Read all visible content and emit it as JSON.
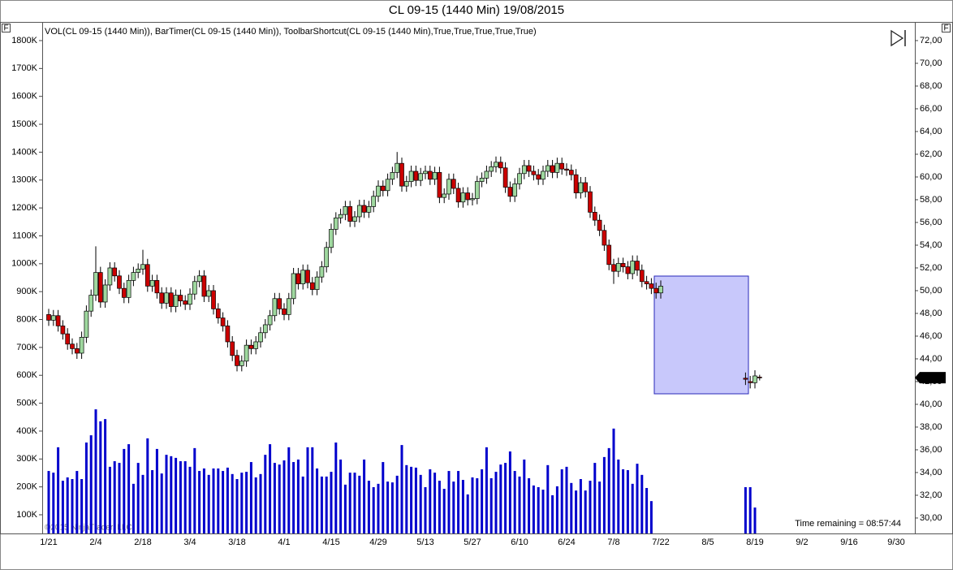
{
  "chart_data": {
    "type": "candlestick",
    "title": "CL 09-15 (1440 Min)  19/08/2015",
    "indicator_label": "VOL(CL 09-15 (1440 Min)), BarTimer(CL 09-15 (1440 Min)), ToolbarShortcut(CL 09-15 (1440 Min),True,True,True,True,True)",
    "annotation": "Time remaining = 08:57:44",
    "copyright": "©2015 NinjaTrader, LLC",
    "panel_buttons": {
      "left": "F",
      "right": "F"
    },
    "last_price": {
      "value": 42.35,
      "label": "42,35"
    },
    "up_color": "#9fd89f",
    "down_color": "#cc0000",
    "categories": [
      "1/21",
      null,
      null,
      null,
      null,
      null,
      null,
      null,
      null,
      null,
      "2/4",
      null,
      null,
      null,
      null,
      null,
      null,
      null,
      null,
      null,
      "2/18",
      null,
      null,
      null,
      null,
      null,
      null,
      null,
      null,
      null,
      "3/4",
      null,
      null,
      null,
      null,
      null,
      null,
      null,
      null,
      null,
      "3/18",
      null,
      null,
      null,
      null,
      null,
      null,
      null,
      null,
      null,
      "4/1",
      null,
      null,
      null,
      null,
      null,
      null,
      null,
      null,
      null,
      "4/15",
      null,
      null,
      null,
      null,
      null,
      null,
      null,
      null,
      null,
      "4/29",
      null,
      null,
      null,
      null,
      null,
      null,
      null,
      null,
      null,
      "5/13",
      null,
      null,
      null,
      null,
      null,
      null,
      null,
      null,
      null,
      "5/27",
      null,
      null,
      null,
      null,
      null,
      null,
      null,
      null,
      null,
      "6/10",
      null,
      null,
      null,
      null,
      null,
      null,
      null,
      null,
      null,
      "6/24",
      null,
      null,
      null,
      null,
      null,
      null,
      null,
      null,
      null,
      "7/8",
      null,
      null,
      null,
      null,
      null,
      null,
      null,
      null,
      null,
      "7/22",
      null,
      null,
      null,
      null,
      null,
      null,
      null,
      null,
      null,
      "8/5",
      null,
      null,
      null,
      null,
      null,
      null,
      null,
      null,
      null,
      "8/19",
      null,
      null,
      null,
      null,
      null,
      null,
      null,
      null,
      null,
      "9/2",
      null,
      null,
      null,
      null,
      null,
      null,
      null,
      null,
      null,
      "9/16",
      null,
      null,
      null,
      null,
      null,
      null,
      null,
      null,
      null,
      "9/30",
      null
    ],
    "ohlc": {
      "open": [
        47.9,
        47.4,
        47.8,
        46.9,
        46.2,
        45.3,
        44.9,
        44.5,
        45.9,
        48.2,
        49.6,
        51.6,
        49.0,
        50.5,
        52.0,
        51.3,
        50.2,
        49.4,
        50.9,
        51.6,
        51.9,
        52.3,
        50.4,
        50.9,
        49.8,
        48.9,
        49.8,
        48.6,
        49.6,
        49.1,
        48.8,
        49.7,
        50.8,
        51.3,
        49.5,
        50.0,
        48.4,
        47.6,
        46.9,
        45.5,
        44.3,
        43.4,
        43.8,
        45.2,
        44.9,
        45.5,
        46.3,
        47.0,
        47.8,
        49.3,
        48.4,
        47.9,
        49.3,
        51.5,
        50.6,
        51.8,
        50.7,
        50.1,
        51.2,
        52.1,
        53.8,
        55.4,
        56.4,
        56.7,
        57.4,
        56.1,
        56.5,
        57.5,
        56.9,
        57.4,
        58.3,
        59.2,
        58.8,
        59.8,
        60.4,
        61.2,
        59.2,
        59.6,
        60.5,
        59.7,
        60.3,
        60.5,
        59.8,
        60.4,
        58.2,
        58.5,
        59.8,
        59.0,
        57.8,
        58.6,
        58.0,
        58.1,
        59.6,
        59.9,
        60.5,
        60.9,
        61.3,
        60.8,
        59.1,
        58.3,
        59.4,
        60.3,
        61.0,
        60.5,
        60.2,
        59.8,
        60.5,
        61.0,
        60.4,
        61.2,
        60.7,
        60.6,
        60.2,
        58.6,
        59.5,
        58.7,
        56.9,
        56.2,
        55.3,
        54.0,
        52.3,
        51.7,
        52.4,
        52.1,
        51.5,
        52.6,
        51.8,
        50.8,
        50.6,
        50.2,
        49.8,
        null,
        null,
        null,
        null,
        null,
        null,
        null,
        null,
        null,
        null,
        null,
        null,
        null,
        null,
        null,
        null,
        null,
        42.3,
        42.0,
        41.9,
        42.4,
        null,
        null,
        null,
        null,
        null,
        null,
        null,
        null,
        null,
        null,
        null,
        null,
        null,
        null,
        null,
        null,
        null,
        null,
        null,
        null,
        null,
        null,
        null,
        null,
        null,
        null,
        null,
        null,
        null,
        null
      ],
      "high": [
        48.4,
        48.3,
        48.3,
        47.4,
        46.7,
        45.8,
        45.4,
        46.4,
        48.7,
        50.1,
        53.9,
        52.1,
        51.0,
        52.5,
        52.5,
        51.8,
        50.7,
        51.4,
        52.1,
        52.4,
        53.6,
        52.8,
        51.4,
        51.4,
        50.3,
        50.3,
        50.3,
        50.1,
        50.1,
        49.6,
        50.2,
        51.3,
        51.8,
        51.8,
        50.5,
        50.5,
        48.9,
        48.1,
        47.4,
        46.0,
        44.8,
        44.3,
        45.7,
        45.7,
        46.0,
        46.8,
        47.5,
        48.3,
        49.8,
        49.8,
        48.9,
        49.8,
        52.0,
        52.0,
        52.3,
        52.3,
        51.2,
        51.7,
        52.6,
        54.3,
        55.9,
        56.9,
        57.2,
        57.9,
        57.9,
        57.0,
        58.0,
        58.0,
        57.9,
        58.8,
        59.7,
        59.7,
        60.3,
        60.9,
        62.2,
        61.7,
        60.1,
        61.0,
        61.0,
        60.8,
        61.0,
        61.0,
        60.9,
        60.9,
        59.0,
        60.3,
        60.3,
        59.5,
        59.1,
        59.1,
        58.6,
        60.1,
        60.4,
        61.0,
        61.4,
        61.8,
        61.8,
        61.3,
        59.6,
        59.9,
        60.8,
        61.5,
        61.5,
        61.0,
        60.7,
        61.0,
        61.5,
        61.5,
        61.7,
        61.7,
        61.2,
        61.1,
        60.7,
        60.0,
        60.0,
        59.2,
        57.4,
        56.7,
        55.8,
        54.5,
        52.8,
        52.9,
        52.9,
        52.6,
        53.1,
        53.1,
        52.3,
        51.3,
        51.1,
        50.7,
        50.9,
        null,
        null,
        null,
        null,
        null,
        null,
        null,
        null,
        null,
        null,
        null,
        null,
        null,
        null,
        null,
        null,
        null,
        42.8,
        42.5,
        43.0,
        42.6,
        null,
        null,
        null,
        null,
        null,
        null,
        null,
        null,
        null,
        null,
        null,
        null,
        null,
        null,
        null,
        null,
        null,
        null,
        null,
        null,
        null,
        null,
        null,
        null,
        null,
        null,
        null,
        null,
        null,
        null
      ],
      "low": [
        46.9,
        46.9,
        46.4,
        45.7,
        44.8,
        44.4,
        44.0,
        44.0,
        45.4,
        47.7,
        49.1,
        48.5,
        48.5,
        50.0,
        50.8,
        49.7,
        48.9,
        48.9,
        50.4,
        51.1,
        51.4,
        49.9,
        49.9,
        49.3,
        48.4,
        48.4,
        48.1,
        48.1,
        48.6,
        48.3,
        48.3,
        49.2,
        50.3,
        49.0,
        49.0,
        47.9,
        47.1,
        46.4,
        45.0,
        43.8,
        42.9,
        42.9,
        43.3,
        44.4,
        44.4,
        45.0,
        45.8,
        46.5,
        47.3,
        47.9,
        47.4,
        47.4,
        48.8,
        50.1,
        50.1,
        50.2,
        49.6,
        49.6,
        50.7,
        51.6,
        53.3,
        54.9,
        55.9,
        56.2,
        55.6,
        55.6,
        56.0,
        56.4,
        56.4,
        56.9,
        57.8,
        58.3,
        58.3,
        59.3,
        59.9,
        58.7,
        58.7,
        59.1,
        59.2,
        59.2,
        59.8,
        59.3,
        59.3,
        57.7,
        57.7,
        58.0,
        58.5,
        57.3,
        57.3,
        57.5,
        57.5,
        57.6,
        59.1,
        59.4,
        60.0,
        60.4,
        60.3,
        58.6,
        57.8,
        57.8,
        58.9,
        59.8,
        60.0,
        59.7,
        59.3,
        59.3,
        60.0,
        59.9,
        59.9,
        60.2,
        60.1,
        59.7,
        58.1,
        58.1,
        58.2,
        56.4,
        55.7,
        54.8,
        53.5,
        51.8,
        50.6,
        51.2,
        51.6,
        51.0,
        51.0,
        51.3,
        50.3,
        50.1,
        49.7,
        49.3,
        49.3,
        null,
        null,
        null,
        null,
        null,
        null,
        null,
        null,
        null,
        null,
        null,
        null,
        null,
        null,
        null,
        null,
        null,
        41.7,
        41.4,
        41.4,
        42.1,
        null,
        null,
        null,
        null,
        null,
        null,
        null,
        null,
        null,
        null,
        null,
        null,
        null,
        null,
        null,
        null,
        null,
        null,
        null,
        null,
        null,
        null,
        null,
        null,
        null,
        null,
        null,
        null,
        null,
        null
      ],
      "close": [
        47.4,
        47.8,
        46.9,
        46.2,
        45.3,
        44.9,
        44.5,
        45.9,
        48.2,
        49.6,
        51.6,
        49.0,
        50.5,
        52.0,
        51.3,
        50.2,
        49.4,
        50.9,
        51.6,
        51.9,
        52.3,
        50.4,
        50.9,
        49.8,
        48.9,
        49.8,
        48.6,
        49.6,
        49.1,
        48.8,
        49.7,
        50.8,
        51.3,
        49.5,
        50.0,
        48.4,
        47.6,
        46.9,
        45.5,
        44.3,
        43.4,
        43.8,
        45.2,
        44.9,
        45.5,
        46.3,
        47.0,
        47.8,
        49.3,
        48.4,
        47.9,
        49.3,
        51.5,
        50.6,
        51.8,
        50.7,
        50.1,
        51.2,
        52.1,
        53.8,
        55.4,
        56.4,
        56.7,
        57.4,
        56.1,
        56.5,
        57.5,
        56.9,
        57.4,
        58.3,
        59.2,
        58.8,
        59.8,
        60.4,
        61.2,
        59.2,
        59.6,
        60.5,
        59.7,
        60.3,
        60.5,
        59.8,
        60.4,
        58.2,
        58.5,
        59.8,
        59.0,
        57.8,
        58.6,
        58.0,
        58.1,
        59.6,
        59.9,
        60.5,
        60.9,
        61.3,
        60.8,
        59.1,
        58.3,
        59.4,
        60.3,
        61.0,
        60.5,
        60.2,
        59.8,
        60.5,
        61.0,
        60.4,
        61.2,
        60.7,
        60.6,
        60.2,
        58.6,
        59.5,
        58.7,
        56.9,
        56.2,
        55.3,
        54.0,
        52.3,
        51.7,
        52.4,
        52.1,
        51.5,
        52.6,
        51.8,
        50.8,
        50.6,
        50.2,
        49.8,
        50.4,
        null,
        null,
        null,
        null,
        null,
        null,
        null,
        null,
        null,
        null,
        null,
        null,
        null,
        null,
        null,
        null,
        null,
        42.2,
        41.9,
        42.5,
        42.35,
        null,
        null,
        null,
        null,
        null,
        null,
        null,
        null,
        null,
        null,
        null,
        null,
        null,
        null,
        null,
        null,
        null,
        null,
        null,
        null,
        null,
        null,
        null,
        null,
        null,
        null,
        null,
        null,
        null,
        null
      ]
    },
    "volume": {
      "color": "#0000cc",
      "values": [
        257000,
        251000,
        342000,
        222000,
        234000,
        228000,
        257000,
        228000,
        359000,
        385000,
        478000,
        435000,
        443000,
        272000,
        292000,
        286000,
        336000,
        353000,
        211000,
        286000,
        243000,
        374000,
        260000,
        336000,
        248000,
        315000,
        310000,
        304000,
        292000,
        292000,
        272000,
        339000,
        257000,
        266000,
        243000,
        266000,
        266000,
        257000,
        269000,
        246000,
        228000,
        251000,
        254000,
        289000,
        234000,
        246000,
        315000,
        353000,
        286000,
        280000,
        295000,
        342000,
        289000,
        298000,
        237000,
        342000,
        342000,
        266000,
        237000,
        237000,
        254000,
        359000,
        298000,
        208000,
        251000,
        251000,
        240000,
        298000,
        222000,
        199000,
        211000,
        289000,
        219000,
        216000,
        240000,
        350000,
        278000,
        272000,
        269000,
        243000,
        199000,
        263000,
        251000,
        222000,
        193000,
        257000,
        219000,
        257000,
        225000,
        173000,
        234000,
        231000,
        263000,
        342000,
        231000,
        254000,
        280000,
        286000,
        327000,
        257000,
        237000,
        298000,
        231000,
        205000,
        199000,
        190000,
        278000,
        170000,
        202000,
        263000,
        272000,
        214000,
        187000,
        228000,
        187000,
        222000,
        286000,
        219000,
        307000,
        339000,
        409000,
        298000,
        263000,
        260000,
        211000,
        283000,
        243000,
        196000,
        149000,
        null,
        null,
        null,
        null,
        null,
        null,
        null,
        null,
        null,
        null,
        null,
        null,
        null,
        null,
        null,
        null,
        null,
        null,
        null,
        199000,
        199000,
        126000,
        null,
        null,
        null,
        null,
        null,
        null,
        null,
        null,
        null,
        null,
        null,
        null,
        null,
        null,
        null,
        null,
        null,
        null,
        null,
        null,
        null,
        null,
        null,
        null,
        null,
        null,
        null,
        null,
        null,
        null,
        null
      ]
    },
    "ylim": [
      33000,
      1864000
    ],
    "yticks": [
      {
        "value": 100000,
        "label": "100K"
      },
      {
        "value": 200000,
        "label": "200K"
      },
      {
        "value": 300000,
        "label": "300K"
      },
      {
        "value": 400000,
        "label": "400K"
      },
      {
        "value": 500000,
        "label": "500K"
      },
      {
        "value": 600000,
        "label": "600K"
      },
      {
        "value": 700000,
        "label": "700K"
      },
      {
        "value": 800000,
        "label": "800K"
      },
      {
        "value": 900000,
        "label": "900K"
      },
      {
        "value": 1000000,
        "label": "1000K"
      },
      {
        "value": 1100000,
        "label": "1100K"
      },
      {
        "value": 1200000,
        "label": "1200K"
      },
      {
        "value": 1300000,
        "label": "1300K"
      },
      {
        "value": 1400000,
        "label": "1400K"
      },
      {
        "value": 1500000,
        "label": "1500K"
      },
      {
        "value": 1600000,
        "label": "1600K"
      },
      {
        "value": 1700000,
        "label": "1700K"
      },
      {
        "value": 1800000,
        "label": "1800K"
      }
    ],
    "y2lim": [
      28.64,
      73.57
    ],
    "y2ticks": [
      {
        "value": 30,
        "label": "30,00"
      },
      {
        "value": 32,
        "label": "32,00"
      },
      {
        "value": 34,
        "label": "34,00"
      },
      {
        "value": 36,
        "label": "36,00"
      },
      {
        "value": 38,
        "label": "38,00"
      },
      {
        "value": 40,
        "label": "40,00"
      },
      {
        "value": 42,
        "label": "42,00"
      },
      {
        "value": 44,
        "label": "44,00"
      },
      {
        "value": 46,
        "label": "46,00"
      },
      {
        "value": 48,
        "label": "48,00"
      },
      {
        "value": 50,
        "label": "50,00"
      },
      {
        "value": 52,
        "label": "52,00"
      },
      {
        "value": 54,
        "label": "54,00"
      },
      {
        "value": 56,
        "label": "56,00"
      },
      {
        "value": 58,
        "label": "58,00"
      },
      {
        "value": 60,
        "label": "60,00"
      },
      {
        "value": 62,
        "label": "62,00"
      },
      {
        "value": 64,
        "label": "64,00"
      },
      {
        "value": 66,
        "label": "66,00"
      },
      {
        "value": 68,
        "label": "68,00"
      },
      {
        "value": 70,
        "label": "70,00"
      },
      {
        "value": 72,
        "label": "72,00"
      }
    ]
  }
}
